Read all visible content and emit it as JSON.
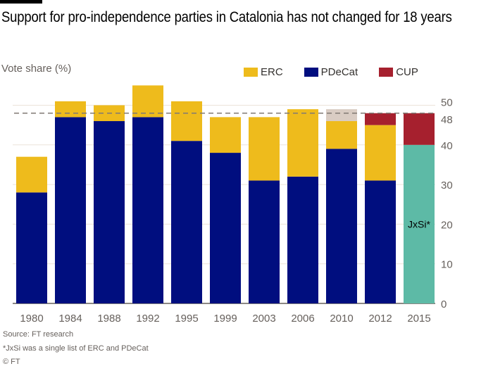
{
  "title": "Support for pro-independence parties in Catalonia has not changed for 18 years",
  "subtitle": "Vote share (%)",
  "legend": [
    {
      "name": "ERC",
      "color": "#eebb1c"
    },
    {
      "name": "PDeCat",
      "color": "#000e7f"
    },
    {
      "name": "CUP",
      "color": "#a6202e"
    }
  ],
  "chart_data": {
    "type": "bar",
    "stacked": true,
    "title": "Support for pro-independence parties in Catalonia has not changed for 18 years",
    "ylabel": "Vote share (%)",
    "xlabel": "",
    "ylim": [
      0,
      55
    ],
    "yticks": [
      0,
      10,
      20,
      30,
      40,
      48,
      50
    ],
    "grid": true,
    "legend_position": "top-right",
    "reference_line": {
      "value": 48,
      "style": "dashed"
    },
    "categories": [
      "1980",
      "1984",
      "1988",
      "1992",
      "1995",
      "1999",
      "2003",
      "2006",
      "2010",
      "2012",
      "2015"
    ],
    "series": [
      {
        "name": "PDeCat",
        "color": "#000e7f",
        "values": [
          28,
          47,
          46,
          47,
          41,
          38,
          31,
          32,
          39,
          31,
          0
        ]
      },
      {
        "name": "JxSi*",
        "color": "#5dbaa6",
        "values": [
          0,
          0,
          0,
          0,
          0,
          0,
          0,
          0,
          0,
          0,
          40
        ]
      },
      {
        "name": "ERC",
        "color": "#eebb1c",
        "values": [
          9,
          4,
          4,
          8,
          10,
          9,
          16,
          17,
          7,
          14,
          0
        ]
      },
      {
        "name": "",
        "color": "#d9ccc3",
        "values": [
          0,
          0,
          0,
          0,
          0,
          0,
          0,
          0,
          3,
          0,
          0
        ]
      },
      {
        "name": "CUP",
        "color": "#a6202e",
        "values": [
          0,
          0,
          0,
          0,
          0,
          0,
          0,
          0,
          0,
          3,
          8
        ]
      }
    ],
    "bar_label": {
      "category": "2015",
      "text": "JxSi*"
    }
  },
  "footer": {
    "source": "Source: FT research",
    "note": "*JxSi was a single list of ERC and PDeCat",
    "copyright": "© FT"
  }
}
